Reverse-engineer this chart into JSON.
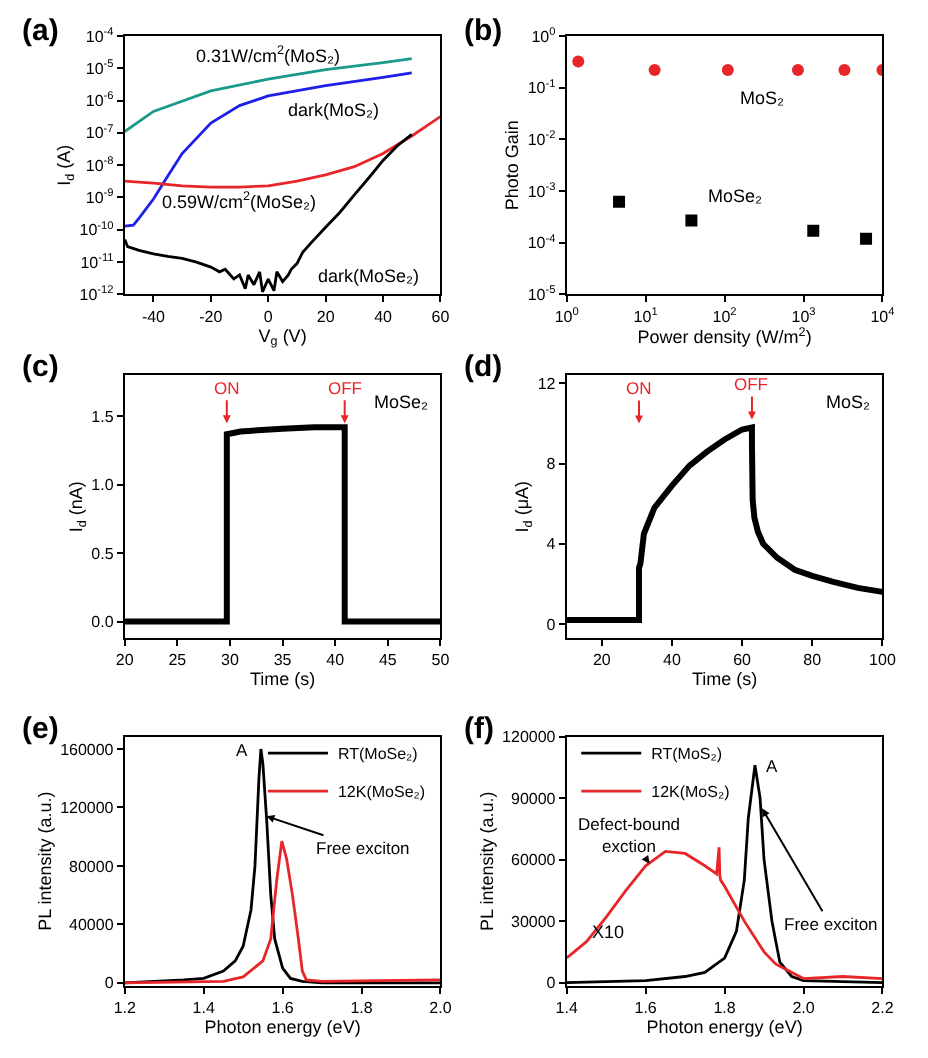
{
  "chart_data": [
    {
      "type": "line",
      "title": "(a)",
      "xlabel": "V$_{g}$ (V)",
      "ylabel": "I$_{d}$ (A)",
      "log": "y",
      "xlim": [
        -50,
        60
      ],
      "xticks": [
        -40,
        -20,
        0,
        20,
        40,
        60
      ],
      "ylim": [
        1e-12,
        0.0001
      ],
      "yticks": [
        {
          "value": 1e-12,
          "label": "10$^{-12}$"
        },
        {
          "value": 1e-11,
          "label": "10$^{-11}$"
        },
        {
          "value": 1e-10,
          "label": "10$^{-10}$"
        },
        {
          "value": 1e-09,
          "label": "10$^{-9}$"
        },
        {
          "value": 1e-08,
          "label": "10$^{-8}$"
        },
        {
          "value": 1e-07,
          "label": "10$^{-7}$"
        },
        {
          "value": 1e-06,
          "label": "10$^{-6}$"
        },
        {
          "value": 1e-05,
          "label": "10$^{-5}$"
        },
        {
          "value": 0.0001,
          "label": "10$^{-4}$"
        }
      ],
      "series": [
        {
          "name": "0.31W/cm$^{2}$(MoS₂)",
          "color": "#1a9a8a",
          "x": [
            -50,
            -40,
            -20,
            0,
            20,
            40,
            50
          ],
          "values": [
            1.1e-07,
            4.6e-07,
            2e-06,
            4.6e-06,
            9e-06,
            1.5e-05,
            2e-05
          ]
        },
        {
          "name": "dark(MoS₂)",
          "color": "#1f1fe8",
          "x": [
            -50,
            -47,
            -45,
            -40,
            -35,
            -30,
            -20,
            -10,
            0,
            20,
            40,
            50
          ],
          "values": [
            1.3e-10,
            1.4e-10,
            2.3e-10,
            9e-10,
            4.6e-09,
            2.3e-08,
            2e-07,
            7e-07,
            1.4e-06,
            2.9e-06,
            5.2e-06,
            7.2e-06
          ]
        },
        {
          "name": "0.59W/cm$^{2}$(MoSe₂)",
          "color": "#e8262a",
          "x": [
            -50,
            -40,
            -30,
            -20,
            -10,
            0,
            10,
            20,
            30,
            40,
            50,
            60
          ],
          "values": [
            3.2e-09,
            2.8e-09,
            2.3e-09,
            2.1e-09,
            2.1e-09,
            2.3e-09,
            3.2e-09,
            5e-09,
            9e-09,
            2.3e-08,
            8e-08,
            3.2e-07
          ]
        },
        {
          "name": "dark(MoSe₂)",
          "color": "#000000",
          "x": [
            -50,
            -49,
            -45,
            -40,
            -35,
            -30,
            -25,
            -20,
            -17,
            -15,
            -12,
            -10,
            -8,
            -7,
            -5,
            -3,
            -2,
            0,
            2,
            3,
            5,
            7,
            8,
            10,
            12,
            15,
            20,
            25,
            30,
            35,
            40,
            45,
            50
          ],
          "values": [
            5e-11,
            3e-11,
            2.3e-11,
            1.8e-11,
            1.5e-11,
            1.3e-11,
            1e-11,
            7e-12,
            5e-12,
            6e-12,
            3e-12,
            4e-12,
            1.5e-12,
            4e-12,
            2e-12,
            5e-12,
            1.2e-12,
            3e-12,
            1.3e-12,
            5e-12,
            2.5e-12,
            4e-12,
            6e-12,
            9e-12,
            2e-11,
            4e-11,
            1.2e-10,
            3.5e-10,
            1.2e-09,
            4e-09,
            1.4e-08,
            4e-08,
            9e-08
          ]
        }
      ]
    },
    {
      "type": "scatter",
      "title": "(b)",
      "xlabel": "Power density (W/m$^{2}$)",
      "ylabel": "Photo Gain",
      "log": "xy",
      "xlim": [
        1,
        10000
      ],
      "xticks": [
        {
          "value": 1,
          "label": "10$^{0}$"
        },
        {
          "value": 10,
          "label": "10$^{1}$"
        },
        {
          "value": 100,
          "label": "10$^{2}$"
        },
        {
          "value": 1000,
          "label": "10$^{3}$"
        },
        {
          "value": 10000,
          "label": "10$^{4}$"
        }
      ],
      "ylim": [
        1e-05,
        1
      ],
      "yticks": [
        {
          "value": 1e-05,
          "label": "10$^{-5}$"
        },
        {
          "value": 0.0001,
          "label": "10$^{-4}$"
        },
        {
          "value": 0.001,
          "label": "10$^{-3}$"
        },
        {
          "value": 0.01,
          "label": "10$^{-2}$"
        },
        {
          "value": 0.1,
          "label": "10$^{-1}$"
        },
        {
          "value": 1,
          "label": "10$^{0}$"
        }
      ],
      "series": [
        {
          "name": "MoS₂",
          "color": "#e8262a",
          "marker": "circle",
          "x": [
            1.4,
            13,
            110,
            850,
            3300,
            10000
          ],
          "values": [
            0.32,
            0.22,
            0.22,
            0.22,
            0.22,
            0.22
          ]
        },
        {
          "name": "MoSe₂",
          "color": "#000000",
          "marker": "square",
          "x": [
            4.6,
            38,
            1330,
            6200
          ],
          "values": [
            0.00062,
            0.00027,
            0.00017,
            0.00012
          ]
        }
      ]
    },
    {
      "type": "line",
      "title": "(c)",
      "xlabel": "Time (s)",
      "ylabel": "I$_{d}$ (nA)",
      "xlim": [
        20,
        50
      ],
      "xticks": [
        20,
        25,
        30,
        35,
        40,
        45,
        50
      ],
      "ylim": [
        -0.12,
        1.8
      ],
      "yticks": [
        {
          "value": 0,
          "label": "0.0"
        },
        0.5,
        {
          "value": 1,
          "label": "1.0"
        },
        1.5
      ],
      "series": [
        {
          "color": "#000000",
          "x": [
            20,
            29.7,
            29.7,
            31,
            33,
            35,
            38,
            40.9,
            40.9,
            50
          ],
          "values": [
            0,
            0,
            1.37,
            1.39,
            1.4,
            1.41,
            1.42,
            1.42,
            0,
            0
          ]
        }
      ],
      "annotations": [
        {
          "text": "ON",
          "x": 29.7,
          "y": 1.45
        },
        {
          "text": "OFF",
          "x": 40.9,
          "y": 1.45
        },
        "MoSe₂"
      ]
    },
    {
      "type": "line",
      "title": "(d)",
      "xlabel": "Time (s)",
      "ylabel": "I$_{d}$ (μA)",
      "xlim": [
        10,
        100
      ],
      "xticks": [
        20,
        40,
        60,
        80,
        100
      ],
      "ylim": [
        -0.7,
        12.4
      ],
      "yticks": [
        0,
        4,
        8,
        12
      ],
      "series": [
        {
          "color": "#000000",
          "x": [
            10,
            30.6,
            30.6,
            31,
            32,
            35,
            40,
            45,
            50,
            55,
            60,
            62.8,
            62.8,
            63,
            63.5,
            64.5,
            66,
            70,
            75,
            80,
            86,
            93,
            100
          ],
          "values": [
            0.2,
            0.2,
            2.8,
            3.0,
            4.5,
            5.8,
            6.9,
            7.9,
            8.6,
            9.2,
            9.7,
            9.8,
            9.0,
            6.2,
            5.3,
            4.6,
            4.0,
            3.3,
            2.7,
            2.4,
            2.1,
            1.8,
            1.6
          ]
        }
      ],
      "annotations": [
        {
          "text": "ON",
          "x": 30.6,
          "y": 10.0
        },
        {
          "text": "OFF",
          "x": 62.8,
          "y": 10.2
        },
        "MoS₂"
      ]
    },
    {
      "type": "line",
      "title": "(e)",
      "xlabel": "Photon energy (eV)",
      "ylabel": "PL intensity (a.u.)",
      "legend": "top right",
      "xlim": [
        1.2,
        2.0
      ],
      "xticks": [
        1.2,
        1.4,
        1.6,
        1.8,
        {
          "value": 2.0,
          "label": "2.0"
        }
      ],
      "ylim": [
        -2000,
        168500
      ],
      "yticks": [
        0,
        40000,
        80000,
        120000,
        160000
      ],
      "series": [
        {
          "name": "RT(MoSe₂)",
          "color": "#000000",
          "x": [
            1.2,
            1.35,
            1.4,
            1.45,
            1.48,
            1.5,
            1.52,
            1.53,
            1.54,
            1.545,
            1.55,
            1.56,
            1.57,
            1.58,
            1.6,
            1.62,
            1.65,
            1.7,
            2.0
          ],
          "values": [
            0,
            2000,
            3000,
            8000,
            15000,
            25000,
            50000,
            80000,
            140000,
            160000,
            150000,
            110000,
            60000,
            30000,
            10000,
            3000,
            1000,
            0,
            0
          ]
        },
        {
          "name": "12K(MoSe₂)",
          "color": "#e8262a",
          "x": [
            1.2,
            1.45,
            1.5,
            1.55,
            1.57,
            1.585,
            1.598,
            1.61,
            1.625,
            1.64,
            1.65,
            1.66,
            1.7,
            2.0
          ],
          "values": [
            0,
            1000,
            4000,
            15000,
            30000,
            70000,
            97000,
            85000,
            60000,
            30000,
            8000,
            2000,
            1000,
            2000
          ]
        }
      ],
      "annotations": [
        {
          "text": "A",
          "x": 1.541,
          "y": 160000
        },
        {
          "text": "Free exciton",
          "x": 1.559,
          "y": 114000
        }
      ]
    },
    {
      "type": "line",
      "title": "(f)",
      "xlabel": "Photon energy (eV)",
      "ylabel": "PL intensity (a.u.)",
      "legend": "top left",
      "xlim": [
        1.4,
        2.2
      ],
      "xticks": [
        1.4,
        1.6,
        1.8,
        {
          "value": 2.0,
          "label": "2.0"
        },
        2.2
      ],
      "ylim": [
        -1500,
        120000
      ],
      "yticks": [
        0,
        30000,
        60000,
        90000,
        120000
      ],
      "series": [
        {
          "name": "RT(MoS₂)",
          "color": "#000000",
          "x": [
            1.4,
            1.6,
            1.7,
            1.75,
            1.8,
            1.83,
            1.85,
            1.86,
            1.877,
            1.89,
            1.9,
            1.92,
            1.94,
            1.97,
            2.0,
            2.2
          ],
          "values": [
            0,
            1000,
            3000,
            5000,
            12000,
            25000,
            50000,
            80000,
            106000,
            90000,
            60000,
            30000,
            10000,
            3000,
            1000,
            0
          ]
        },
        {
          "name": "12K(MoS₂)",
          "color": "#e8262a",
          "x": [
            1.4,
            1.45,
            1.5,
            1.55,
            1.6,
            1.65,
            1.7,
            1.75,
            1.78,
            1.786,
            1.788,
            1.79,
            1.8,
            1.85,
            1.9,
            1.93,
            1.95,
            2.0,
            2.1,
            2.2
          ],
          "values": [
            12000,
            20000,
            32000,
            45000,
            57000,
            64000,
            63000,
            57000,
            53000,
            66000,
            52000,
            50000,
            47000,
            30000,
            15000,
            9000,
            7000,
            2000,
            3000,
            2000
          ]
        }
      ],
      "annotations": [
        {
          "text": "A",
          "x": 1.877,
          "y": 106000
        },
        {
          "text": "Free exciton",
          "x": 1.895,
          "y": 85000
        },
        {
          "text": "Defect-bound\nexction",
          "x": 1.61,
          "y": 58000
        },
        "X10"
      ]
    }
  ]
}
